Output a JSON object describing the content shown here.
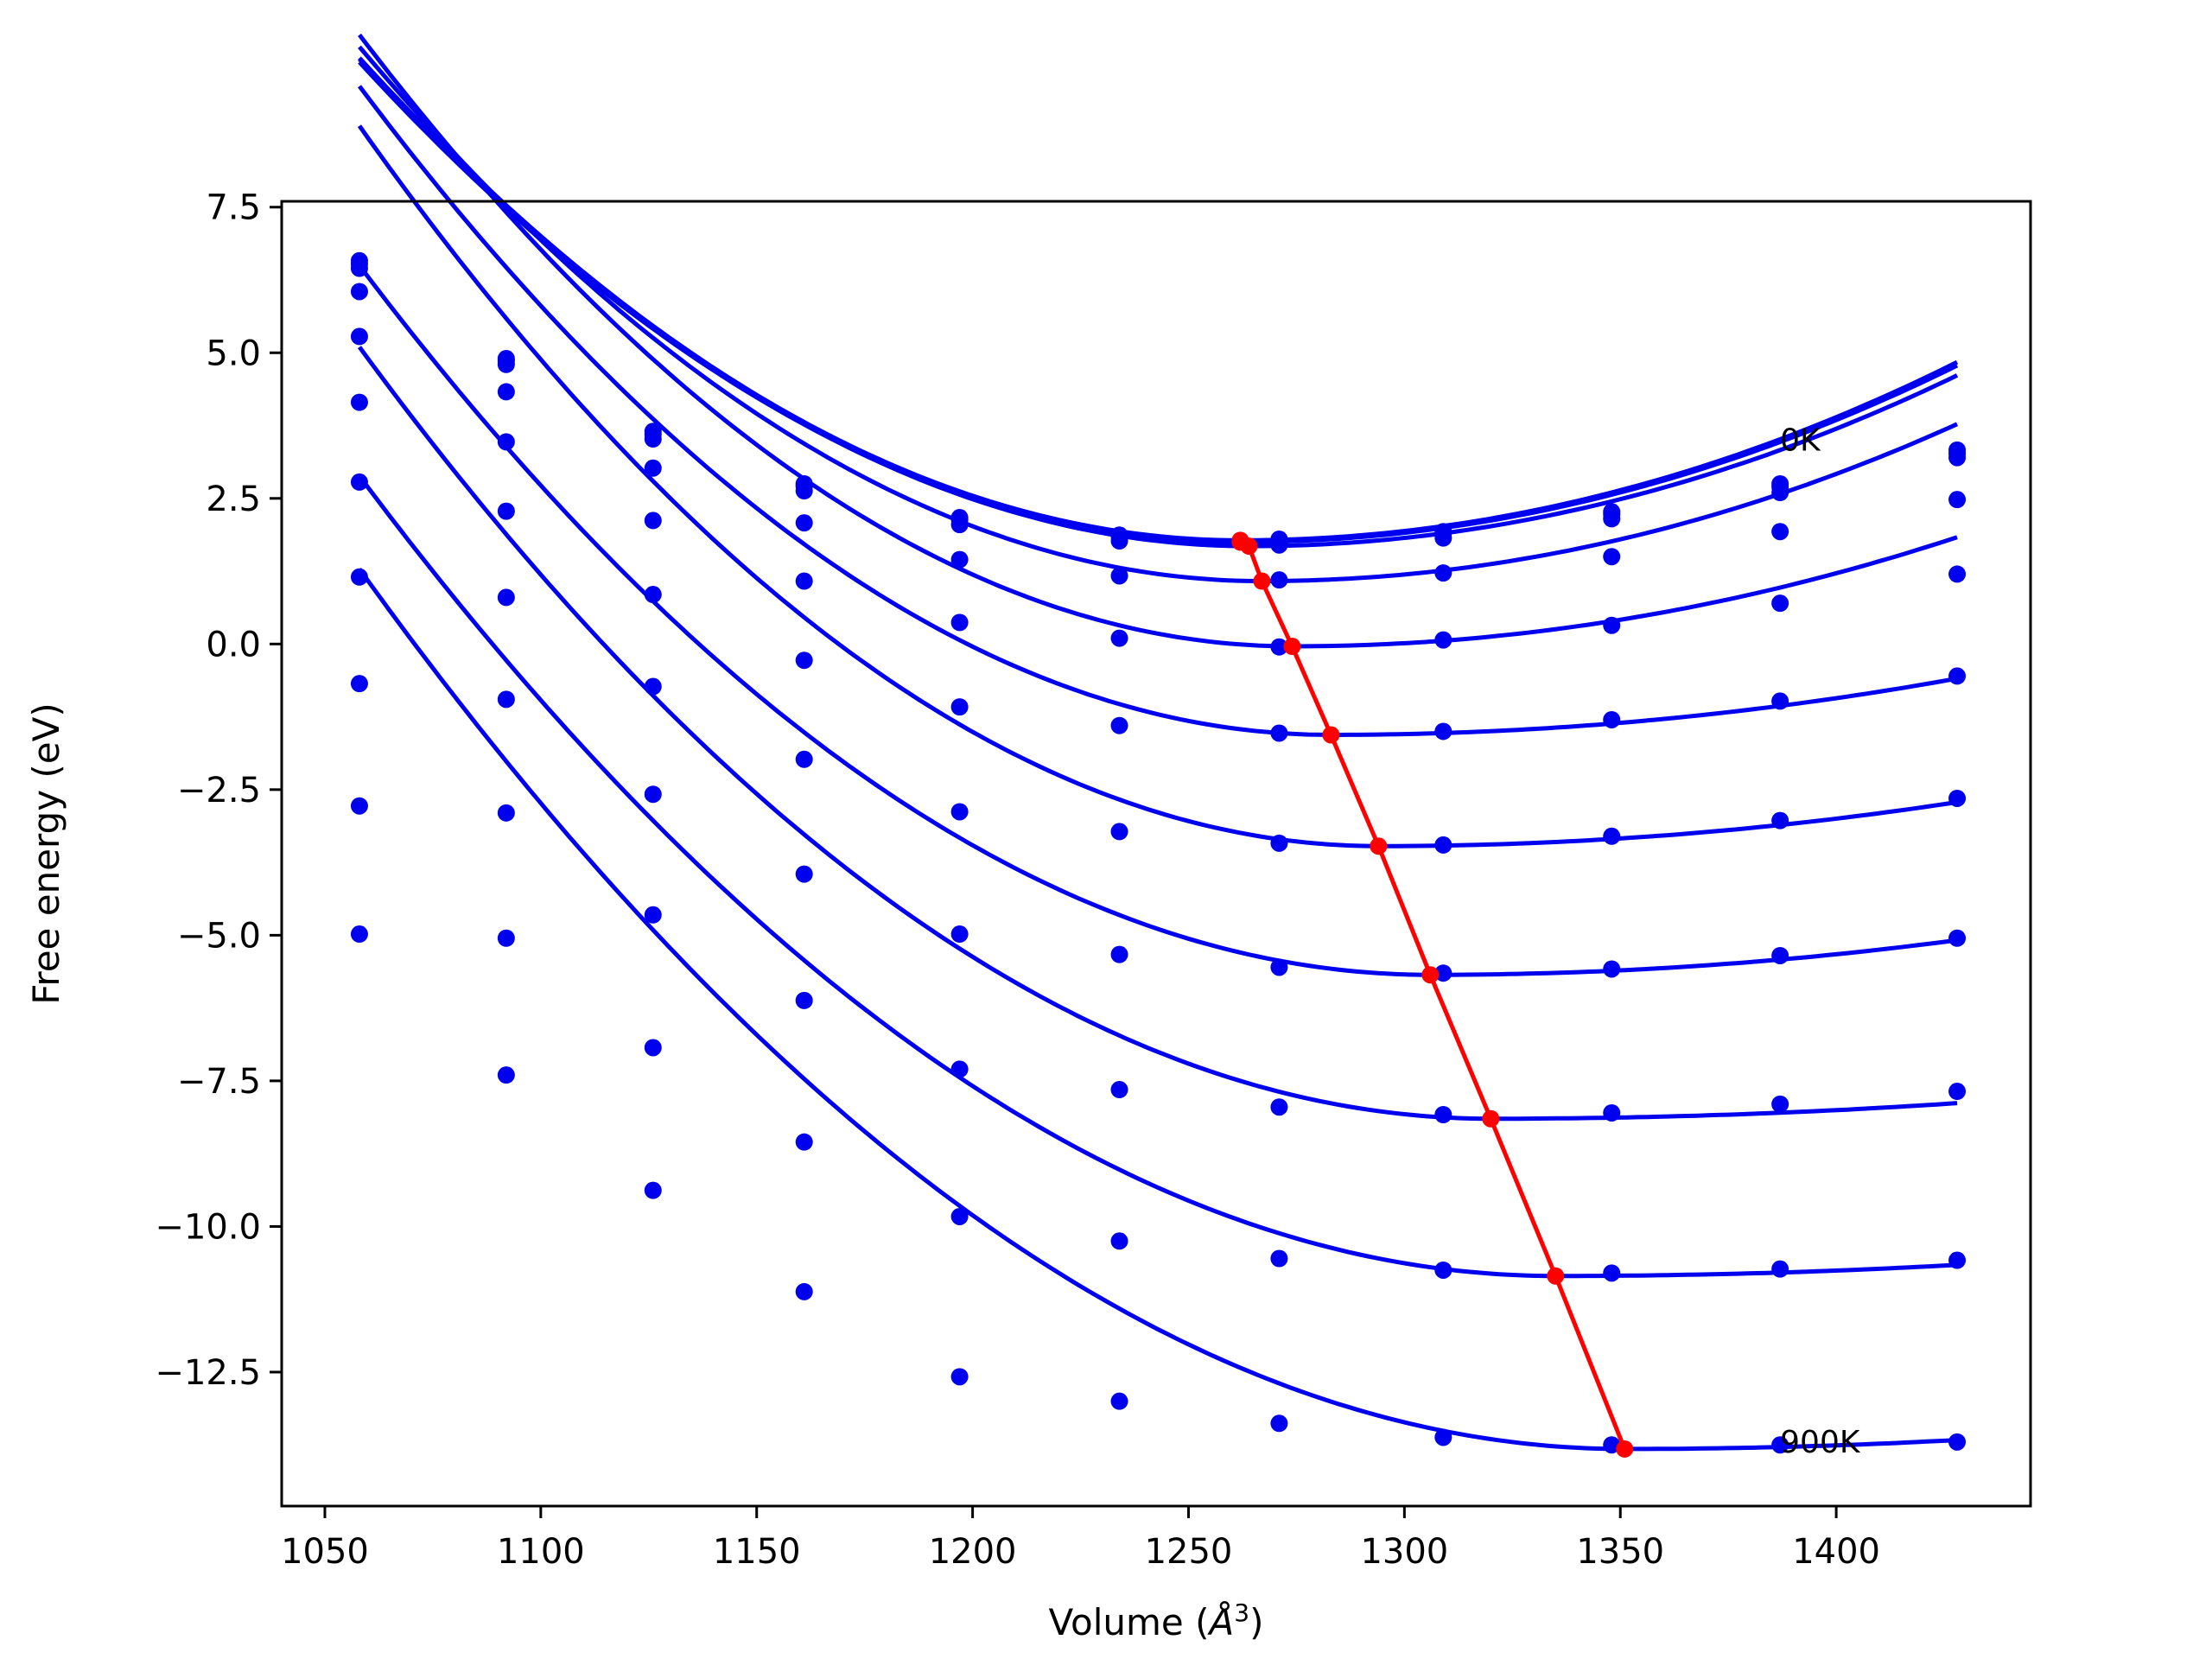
{
  "chart_data": {
    "type": "line",
    "title": "",
    "xlabel": "Volume (",
    "xlabel_symbol": "Å",
    "xlabel_exp": "3",
    "xlabel_close": ")",
    "ylabel": "Free energy (eV)",
    "xlim": [
      1040,
      1445
    ],
    "ylim": [
      -14.8,
      7.6
    ],
    "xticks": [
      1050,
      1100,
      1150,
      1200,
      1250,
      1300,
      1350,
      1400
    ],
    "xtick_labels": [
      "1050",
      "1100",
      "1150",
      "1200",
      "1250",
      "1300",
      "1350",
      "1400"
    ],
    "yticks": [
      7.5,
      5.0,
      2.5,
      0.0,
      -2.5,
      -5.0,
      -7.5,
      -10.0,
      -12.5
    ],
    "ytick_labels": [
      "7.5",
      "5.0",
      "2.5",
      "0.0",
      "−2.5",
      "−5.0",
      "−7.5",
      "−10.0",
      "−12.5"
    ],
    "grid": false,
    "annotations": [
      {
        "text": "0K",
        "x": 1387,
        "y": 3.5
      },
      {
        "text": "900K",
        "x": 1387,
        "y": -13.7
      }
    ],
    "volumes": [
      1058,
      1092,
      1126,
      1161,
      1197,
      1234,
      1271,
      1309,
      1348,
      1387,
      1428
    ],
    "series": [
      {
        "points": [
          6.58,
          4.9,
          3.65,
          2.75,
          2.17,
          1.87,
          1.8,
          1.93,
          2.27,
          2.75,
          3.33
        ],
        "curve": {
          "vmin": 1262,
          "fmin": 1.78,
          "a_left": 0.000199,
          "a_right": 0.000111
        }
      },
      {
        "points": [
          6.52,
          4.86,
          3.6,
          2.71,
          2.13,
          1.84,
          1.77,
          1.9,
          2.23,
          2.7,
          3.27
        ],
        "curve": {
          "vmin": 1262,
          "fmin": 1.75,
          "a_left": 0.000198,
          "a_right": 0.00011
        }
      },
      {
        "points": [
          6.45,
          4.8,
          3.52,
          2.63,
          2.05,
          1.77,
          1.7,
          1.82,
          2.15,
          2.6,
          3.2
        ],
        "curve": {
          "vmin": 1264,
          "fmin": 1.68,
          "a_left": 0.000197,
          "a_right": 0.000109
        }
      },
      {
        "points": [
          6.05,
          4.33,
          3.02,
          2.08,
          1.45,
          1.17,
          1.1,
          1.22,
          1.5,
          1.93,
          2.48
        ],
        "curve": {
          "vmin": 1267,
          "fmin": 1.08,
          "a_left": 0.00021,
          "a_right": 0.000104
        }
      },
      {
        "points": [
          5.28,
          3.47,
          2.12,
          1.08,
          0.37,
          0.1,
          -0.05,
          0.07,
          0.32,
          0.7,
          1.2
        ],
        "curve": {
          "vmin": 1274,
          "fmin": -0.04,
          "a_left": 0.000225,
          "a_right": 7.9e-05
        }
      },
      {
        "points": [
          4.15,
          2.28,
          0.85,
          -0.28,
          -1.08,
          -1.4,
          -1.53,
          -1.5,
          -1.3,
          -0.98,
          -0.55
        ],
        "curve": {
          "vmin": 1283,
          "fmin": -1.56,
          "a_left": 0.00022,
          "a_right": 4.6e-05
        }
      },
      {
        "points": [
          2.78,
          0.8,
          -0.73,
          -1.98,
          -2.88,
          -3.22,
          -3.42,
          -3.45,
          -3.3,
          -3.03,
          -2.65
        ],
        "curve": {
          "vmin": 1294,
          "fmin": -3.47,
          "a_left": 0.000222,
          "a_right": 4.2e-05
        }
      },
      {
        "points": [
          1.15,
          -0.95,
          -2.58,
          -3.95,
          -4.98,
          -5.33,
          -5.55,
          -5.65,
          -5.58,
          -5.35,
          -5.05
        ],
        "curve": {
          "vmin": 1306,
          "fmin": -5.68,
          "a_left": 0.000198,
          "a_right": 4e-05
        }
      },
      {
        "points": [
          -0.68,
          -2.9,
          -4.65,
          -6.12,
          -7.3,
          -7.65,
          -7.95,
          -8.08,
          -8.05,
          -7.9,
          -7.68
        ],
        "curve": {
          "vmin": 1320,
          "fmin": -8.15,
          "a_left": 0.000193,
          "a_right": 2.3e-05
        }
      },
      {
        "points": [
          -2.78,
          -5.05,
          -6.93,
          -8.55,
          -9.83,
          -10.25,
          -10.55,
          -10.75,
          -10.8,
          -10.73,
          -10.58
        ],
        "curve": {
          "vmin": 1335,
          "fmin": -10.85,
          "a_left": 0.000179,
          "a_right": 2.2e-05
        }
      },
      {
        "points": [
          -4.98,
          -7.4,
          -9.38,
          -11.12,
          -12.58,
          -13.0,
          -13.38,
          -13.62,
          -13.75,
          -13.75,
          -13.7
        ],
        "curve": {
          "vmin": 1351,
          "fmin": -13.82,
          "a_left": 0.000176,
          "a_right": 2.6e-05
        }
      }
    ],
    "equilibrium_line": {
      "x": [
        1262,
        1262,
        1264,
        1267,
        1274,
        1283,
        1294,
        1306,
        1320,
        1335,
        1351
      ],
      "y": [
        1.78,
        1.75,
        1.68,
        1.08,
        -0.04,
        -1.56,
        -3.47,
        -5.68,
        -8.15,
        -10.85,
        -13.82
      ]
    },
    "colors": {
      "series": "#0000ee",
      "equilibrium": "#ff0000",
      "axes": "#000000"
    }
  }
}
